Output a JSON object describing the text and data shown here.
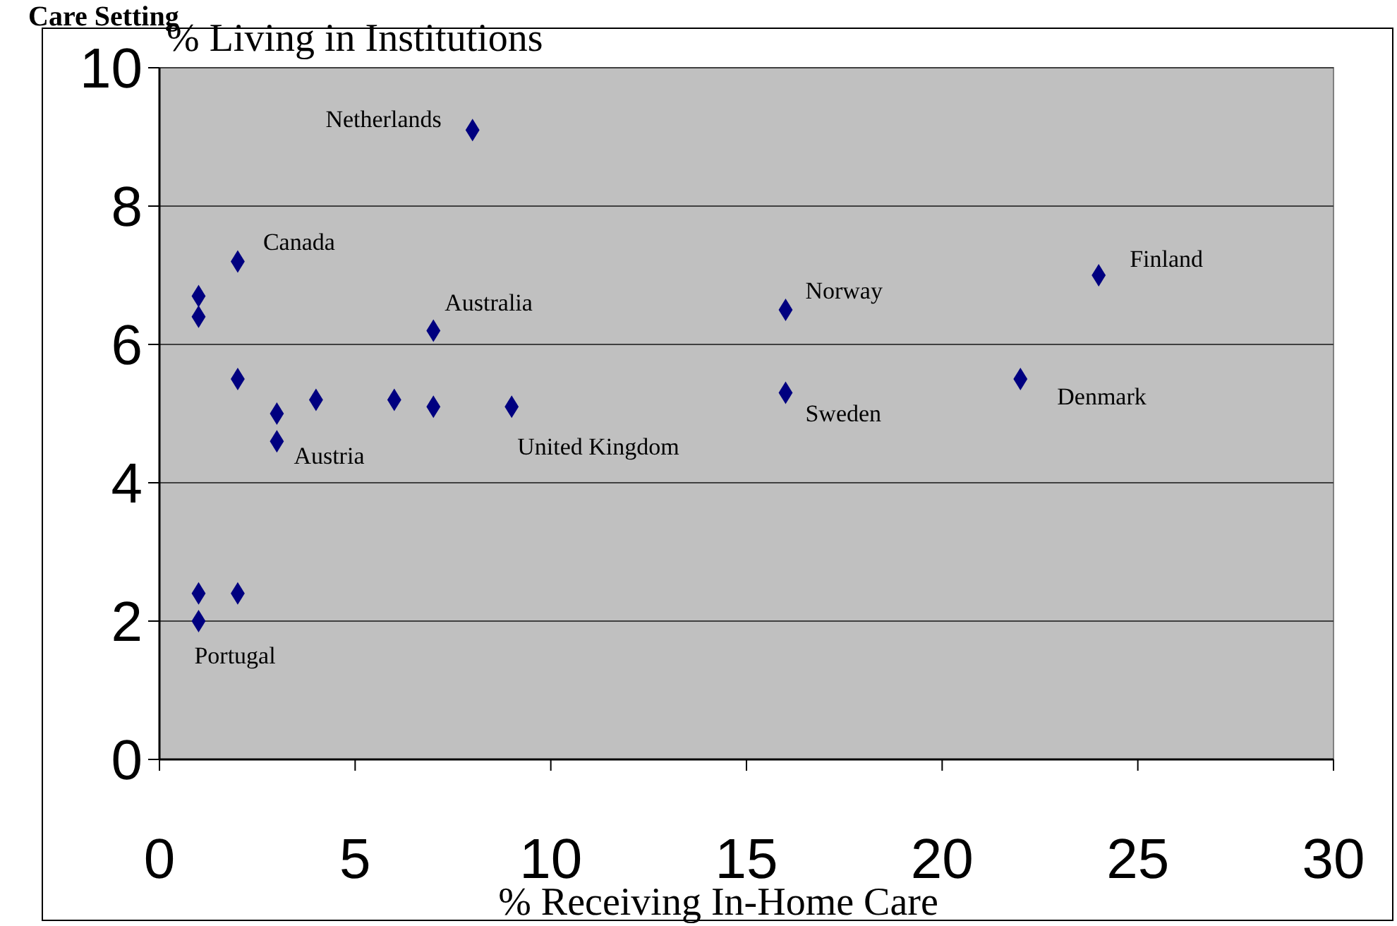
{
  "chart_data": {
    "type": "scatter",
    "title": "Care Setting",
    "xlabel": "% Receiving In-Home Care",
    "ylabel": "% Living in Institutions",
    "x": [
      8,
      2,
      1,
      1,
      7,
      16,
      24,
      2,
      3,
      4,
      6,
      7,
      9,
      16,
      22,
      3,
      1,
      2,
      1
    ],
    "series": [
      {
        "color": "#000080",
        "values": [
          9.1,
          7.2,
          6.7,
          6.4,
          6.2,
          6.5,
          7.0,
          5.5,
          5.0,
          5.2,
          5.2,
          5.1,
          5.1,
          5.3,
          5.5,
          4.6,
          2.4,
          2.4,
          2.0
        ]
      }
    ],
    "xlim": [
      0,
      30
    ],
    "xticks": [
      0,
      5,
      10,
      15,
      20,
      25,
      30
    ],
    "ylim": [
      0,
      10
    ],
    "yticks": [
      0,
      2,
      4,
      6,
      8,
      10
    ],
    "grid": "y",
    "marker": "diamond",
    "annotations": [
      {
        "text": "Netherlands",
        "x": 8,
        "y": 9.1
      },
      {
        "text": "Canada",
        "x": 2,
        "y": 7.2
      },
      {
        "text": "Australia",
        "x": 7,
        "y": 6.2
      },
      {
        "text": "Norway",
        "x": 16,
        "y": 6.5
      },
      {
        "text": "Finland",
        "x": 24,
        "y": 7.0
      },
      {
        "text": "United Kingdom",
        "x": 9,
        "y": 5.1
      },
      {
        "text": "Sweden",
        "x": 16,
        "y": 5.3
      },
      {
        "text": "Denmark",
        "x": 22,
        "y": 5.5
      },
      {
        "text": "Austria",
        "x": 3,
        "y": 4.6
      },
      {
        "text": "Portugal",
        "x": 1,
        "y": 2.0
      }
    ]
  }
}
